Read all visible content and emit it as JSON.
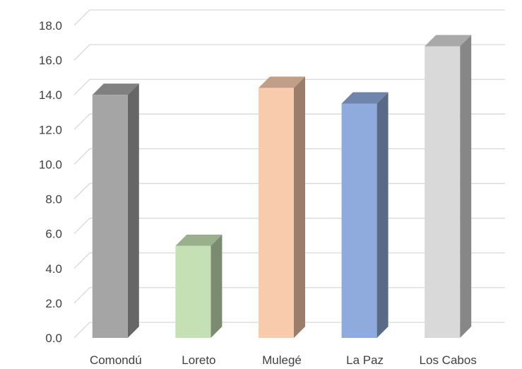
{
  "chart_data": {
    "type": "bar",
    "categories": [
      "Comondú",
      "Loreto",
      "Mulegé",
      "La Paz",
      "Los Cabos"
    ],
    "values": [
      14.0,
      5.3,
      14.4,
      13.5,
      16.8
    ],
    "colors": [
      "#a5a5a5",
      "#c5e0b4",
      "#f8cbad",
      "#8faadc",
      "#d9d9d9"
    ],
    "ylim": [
      0,
      18
    ],
    "yticks": [
      "0.0",
      "2.0",
      "4.0",
      "6.0",
      "8.0",
      "10.0",
      "12.0",
      "14.0",
      "16.0",
      "18.0"
    ],
    "grid": true,
    "style": "3d-column",
    "title": "",
    "xlabel": "",
    "ylabel": ""
  }
}
